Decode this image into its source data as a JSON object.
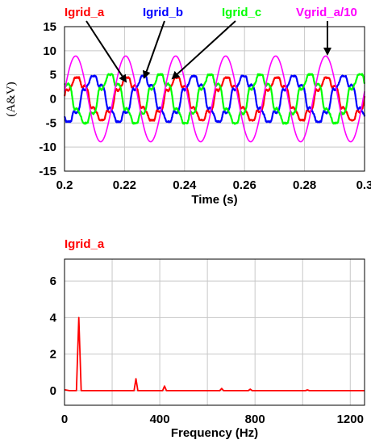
{
  "chart_data": [
    {
      "type": "line",
      "ylabel": "(A&V)",
      "xlabel": "Time (s)",
      "xlim": [
        0.2,
        0.3
      ],
      "ylim": [
        -15,
        15
      ],
      "x_ticks": [
        "0.2",
        "0.22",
        "0.24",
        "0.26",
        "0.28",
        "0.3"
      ],
      "y_ticks": [
        "15",
        "10",
        "5",
        "0",
        "-5",
        "-10",
        "-15"
      ],
      "grid": true,
      "fundamental_hz": 60,
      "series": [
        {
          "name": "Igrid_a",
          "color": "#ff0000",
          "amplitude": 4.2,
          "phase_deg": 0
        },
        {
          "name": "Igrid_b",
          "color": "#0000ff",
          "amplitude": 4.5,
          "phase_deg": -120
        },
        {
          "name": "Igrid_c",
          "color": "#00ff00",
          "amplitude": 4.8,
          "phase_deg": 120
        },
        {
          "name": "Vgrid_a/10",
          "color": "#ff00ff",
          "amplitude": 8.9,
          "phase_deg": 10
        }
      ]
    },
    {
      "type": "bar",
      "title": "Igrid_a",
      "title_color": "#ff0000",
      "xlabel": "Frequency (Hz)",
      "xlim": [
        0,
        1260
      ],
      "ylim": [
        -0.8,
        7.2
      ],
      "x_ticks": [
        "0",
        "400",
        "800",
        "1200"
      ],
      "y_ticks": [
        "6",
        "4",
        "2",
        "0"
      ],
      "grid": true,
      "color": "#ff0000",
      "frequencies": [
        60,
        300,
        420,
        660,
        780,
        1020
      ],
      "values": [
        4.0,
        0.65,
        0.25,
        0.12,
        0.08,
        0.04
      ]
    }
  ]
}
